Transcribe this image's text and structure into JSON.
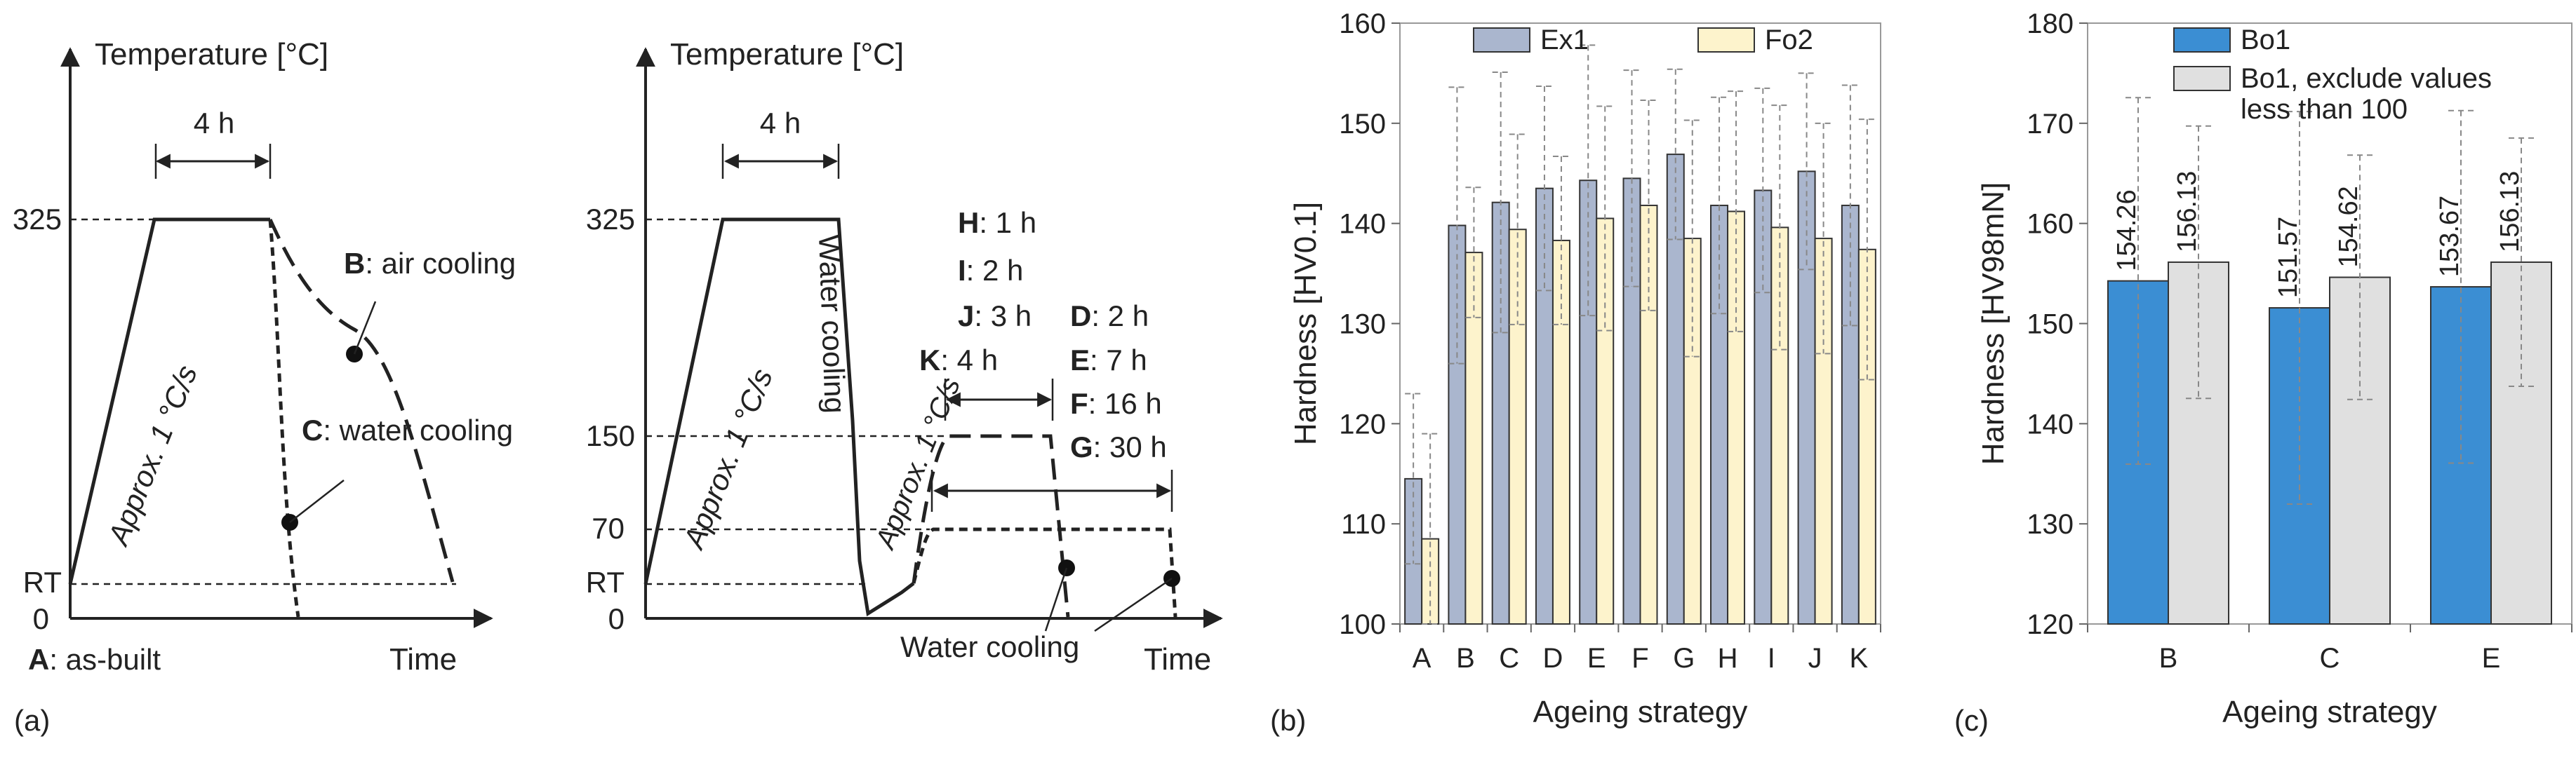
{
  "panel_labels": [
    "(a)",
    "(b)",
    "(c)"
  ],
  "diagram_left": {
    "ylabel": "Temperature [°C]",
    "xlabel": "Time",
    "y_ticks": [
      "325",
      "RT",
      "0"
    ],
    "hold_label": "4 h",
    "heating_label": "Approx. 1 °C/s",
    "labels": {
      "A": {
        "key": "A",
        "text": ": as-built"
      },
      "B": {
        "key": "B",
        "text": ": air cooling"
      },
      "C": {
        "key": "C",
        "text": ": water cooling"
      }
    }
  },
  "diagram_right": {
    "ylabel": "Temperature [°C]",
    "xlabel": "Time",
    "y_ticks": [
      "325",
      "150",
      "70",
      "RT",
      "0"
    ],
    "hold_label": "4 h",
    "heating_label": "Approx. 1 °C/s",
    "heating_label_2": "Approx. 1 °C/s",
    "quench_label": "Water cooling",
    "final_cooling_label": "Water cooling",
    "ageing_150": [
      {
        "key": "H",
        "text": ": 1 h"
      },
      {
        "key": "I",
        "text": ": 2 h"
      },
      {
        "key": "J",
        "text": ": 3 h"
      },
      {
        "key": "K",
        "text": ": 4 h"
      }
    ],
    "ageing_70": [
      {
        "key": "D",
        "text": ": 2 h"
      },
      {
        "key": "E",
        "text": ": 7 h"
      },
      {
        "key": "F",
        "text": ": 16 h"
      },
      {
        "key": "G",
        "text": ": 30 h"
      }
    ]
  },
  "chart_data": [
    {
      "type": "bar",
      "panel": "(b)",
      "xlabel": "Ageing strategy",
      "ylabel": "Hardness [HV0.1]",
      "ylim": [
        100,
        160
      ],
      "yticks": [
        100,
        110,
        120,
        130,
        140,
        150,
        160
      ],
      "legend_position": "top",
      "categories": [
        "A",
        "B",
        "C",
        "D",
        "E",
        "F",
        "G",
        "H",
        "I",
        "J",
        "K"
      ],
      "series": [
        {
          "name": "Ex1",
          "color": "#aab6ce",
          "values": [
            114.5,
            139.8,
            142.1,
            143.5,
            144.3,
            144.5,
            146.9,
            141.8,
            143.3,
            145.2,
            141.8
          ],
          "errors": [
            8.5,
            13.8,
            13.0,
            10.2,
            13.5,
            10.8,
            8.5,
            10.8,
            10.2,
            9.8,
            12.0
          ]
        },
        {
          "name": "Fo2",
          "color": "#fdf3cc",
          "values": [
            108.5,
            137.1,
            139.4,
            138.3,
            140.5,
            141.8,
            138.5,
            141.2,
            139.6,
            138.5,
            137.4
          ],
          "errors": [
            10.5,
            6.5,
            9.5,
            8.4,
            11.2,
            10.5,
            11.8,
            12.0,
            12.2,
            11.5,
            13.0
          ]
        }
      ]
    },
    {
      "type": "bar",
      "panel": "(c)",
      "xlabel": "Ageing strategy",
      "ylabel": "Hardness [HV98mN]",
      "ylim": [
        120,
        180
      ],
      "yticks": [
        120,
        130,
        140,
        150,
        160,
        170,
        180
      ],
      "legend_position": "top-left",
      "categories": [
        "B",
        "C",
        "E"
      ],
      "series": [
        {
          "name": "Bo1",
          "color": "#3b8ed3",
          "values": [
            154.26,
            151.57,
            153.67
          ],
          "labels": [
            "154.26",
            "151.57",
            "153.67"
          ],
          "errors": [
            18.3,
            19.6,
            17.6
          ]
        },
        {
          "name": "Bo1, exclude values less than 100",
          "color": "#e0e0e0",
          "values": [
            156.13,
            154.62,
            156.13
          ],
          "labels": [
            "156.13",
            "154.62",
            "156.13"
          ],
          "errors": [
            13.6,
            12.2,
            12.4
          ]
        }
      ]
    }
  ]
}
